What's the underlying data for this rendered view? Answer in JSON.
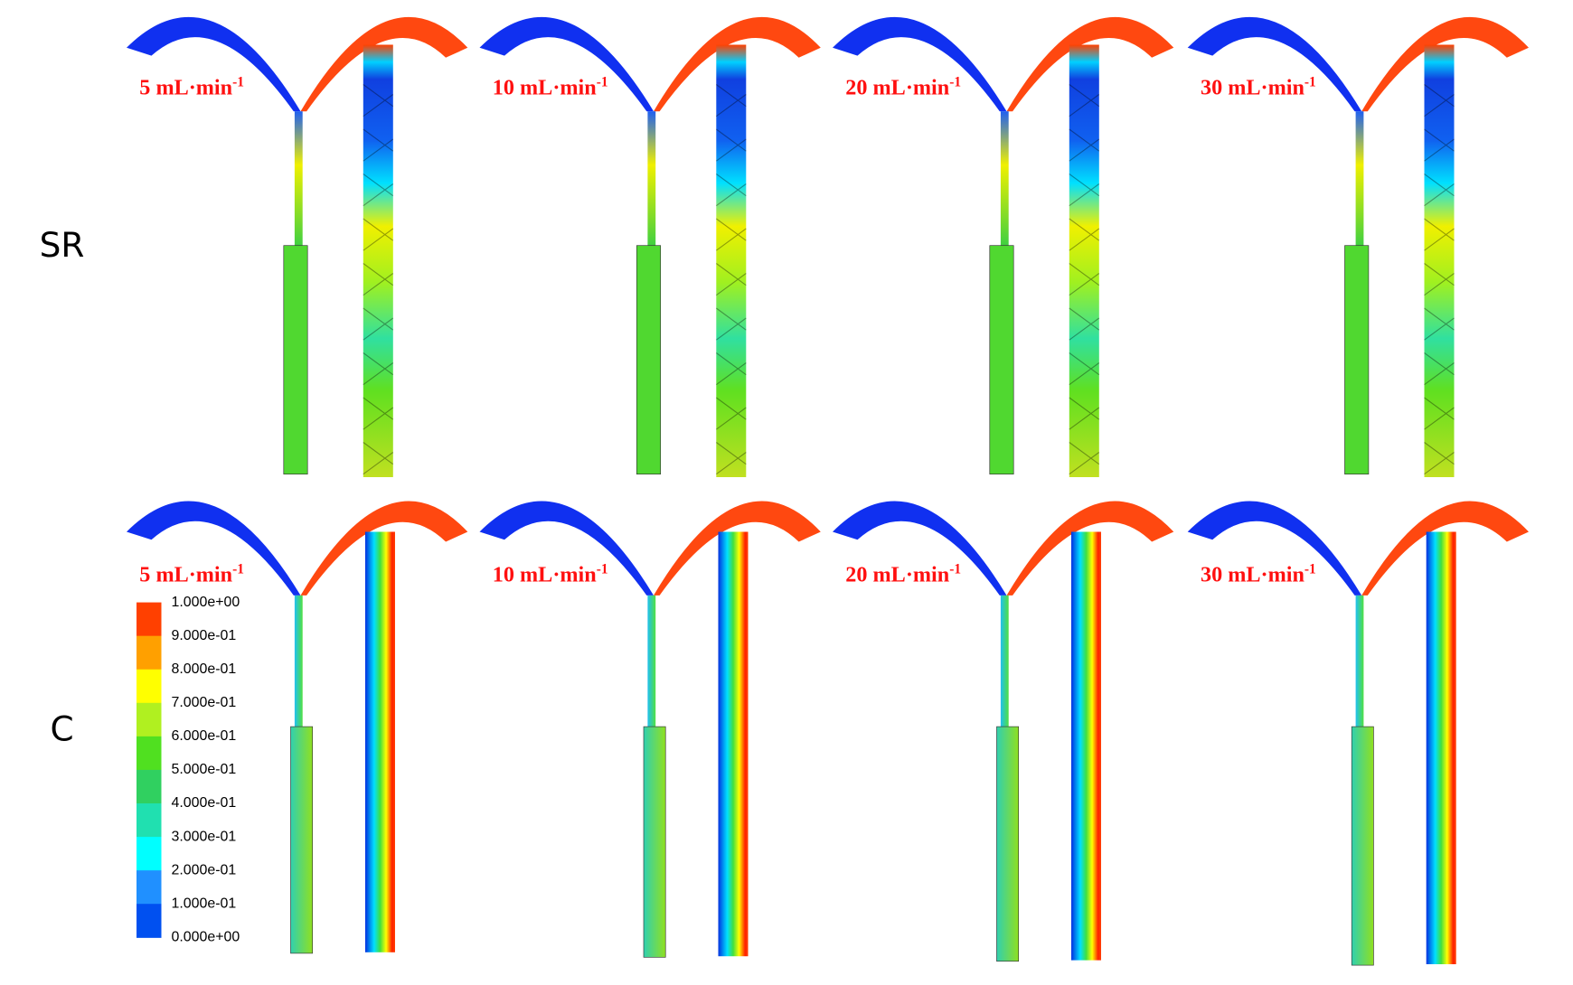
{
  "rows": [
    {
      "label": "SR",
      "panels": [
        {
          "rate": "5 mL·min",
          "exponent": "-1"
        },
        {
          "rate": "10 mL·min",
          "exponent": "-1"
        },
        {
          "rate": "20 mL·min",
          "exponent": "-1"
        },
        {
          "rate": "30 mL·min",
          "exponent": "-1"
        }
      ]
    },
    {
      "label": "C",
      "panels": [
        {
          "rate": "5 mL·min",
          "exponent": "-1"
        },
        {
          "rate": "10 mL·min",
          "exponent": "-1"
        },
        {
          "rate": "20 mL·min",
          "exponent": "-1"
        },
        {
          "rate": "30 mL·min",
          "exponent": "-1"
        }
      ]
    }
  ],
  "legend": {
    "labels": [
      "1.000e+00",
      "9.000e-01",
      "8.000e-01",
      "7.000e-01",
      "6.000e-01",
      "5.000e-01",
      "4.000e-01",
      "3.000e-01",
      "2.000e-01",
      "1.000e-01",
      "0.000e+00"
    ],
    "colors": [
      "#ff4000",
      "#ffa000",
      "#ffff00",
      "#b0f020",
      "#50e020",
      "#30d060",
      "#20e0b0",
      "#00ffff",
      "#2090ff",
      "#0050f0"
    ]
  }
}
